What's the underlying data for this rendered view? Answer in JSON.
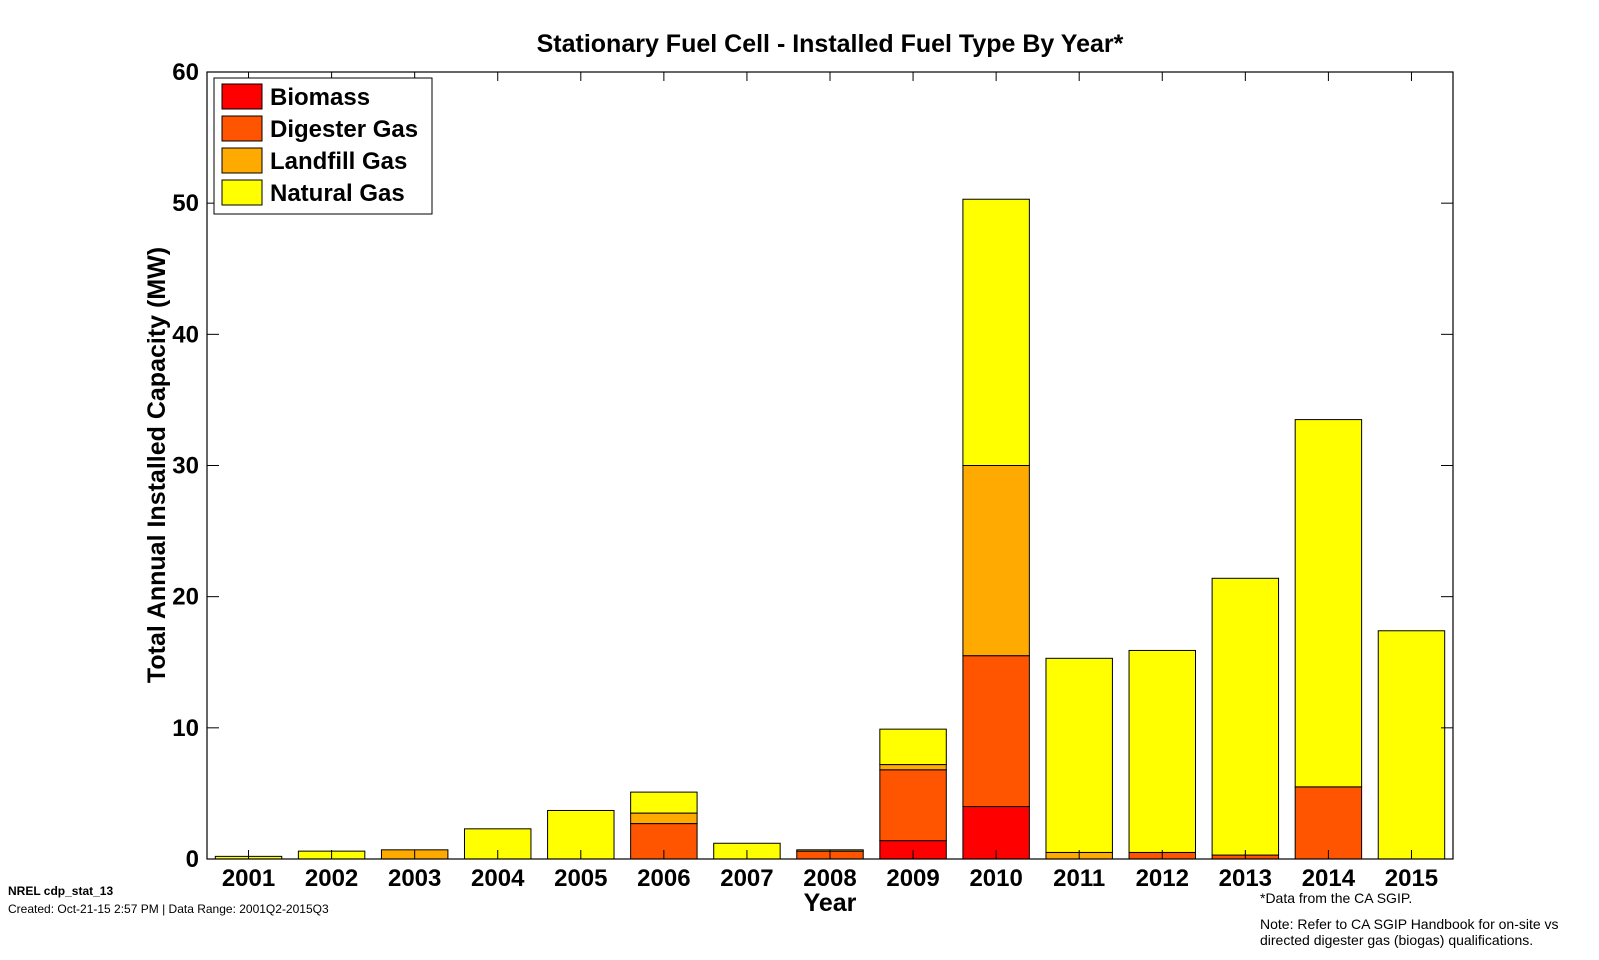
{
  "chart_data": {
    "type": "bar",
    "stacked": true,
    "title": "Stationary Fuel Cell - Installed Fuel Type By Year*",
    "xlabel": "Year",
    "ylabel": "Total Annual Installed Capacity (MW)",
    "ylim": [
      0,
      60
    ],
    "yticks": [
      "0",
      "10",
      "20",
      "30",
      "40",
      "50",
      "60"
    ],
    "categories": [
      "2001",
      "2002",
      "2003",
      "2004",
      "2005",
      "2006",
      "2007",
      "2008",
      "2009",
      "2010",
      "2011",
      "2012",
      "2013",
      "2014",
      "2015"
    ],
    "series": [
      {
        "name": "Biomass",
        "color": "#ff0000",
        "values": [
          0,
          0,
          0,
          0,
          0,
          0,
          0,
          0,
          1.4,
          4.0,
          0,
          0,
          0,
          0,
          0
        ]
      },
      {
        "name": "Digester Gas",
        "color": "#ff5500",
        "values": [
          0,
          0,
          0,
          0,
          0,
          2.7,
          0,
          0.6,
          5.4,
          11.5,
          0,
          0.5,
          0.3,
          5.5,
          0
        ]
      },
      {
        "name": "Landfill Gas",
        "color": "#ffaa00",
        "values": [
          0,
          0,
          0.7,
          0,
          0,
          0.8,
          0,
          0,
          0.4,
          14.5,
          0.5,
          0,
          0,
          0,
          0
        ]
      },
      {
        "name": "Natural Gas",
        "color": "#ffff00",
        "values": [
          0.2,
          0.6,
          0,
          2.3,
          3.7,
          1.6,
          1.2,
          0.1,
          2.7,
          20.3,
          14.8,
          15.4,
          21.1,
          28.0,
          17.4
        ]
      }
    ],
    "legend_position": "top-left",
    "grid": false
  },
  "footer": {
    "id_label": "NREL cdp_stat_13",
    "created": "Created: Oct-21-15  2:57 PM | Data Range: 2001Q2-2015Q3",
    "footnote_source": "*Data from the CA SGIP.",
    "footnote_note": "Note: Refer to CA SGIP Handbook for on-site vs directed digester gas (biogas) qualifications."
  }
}
